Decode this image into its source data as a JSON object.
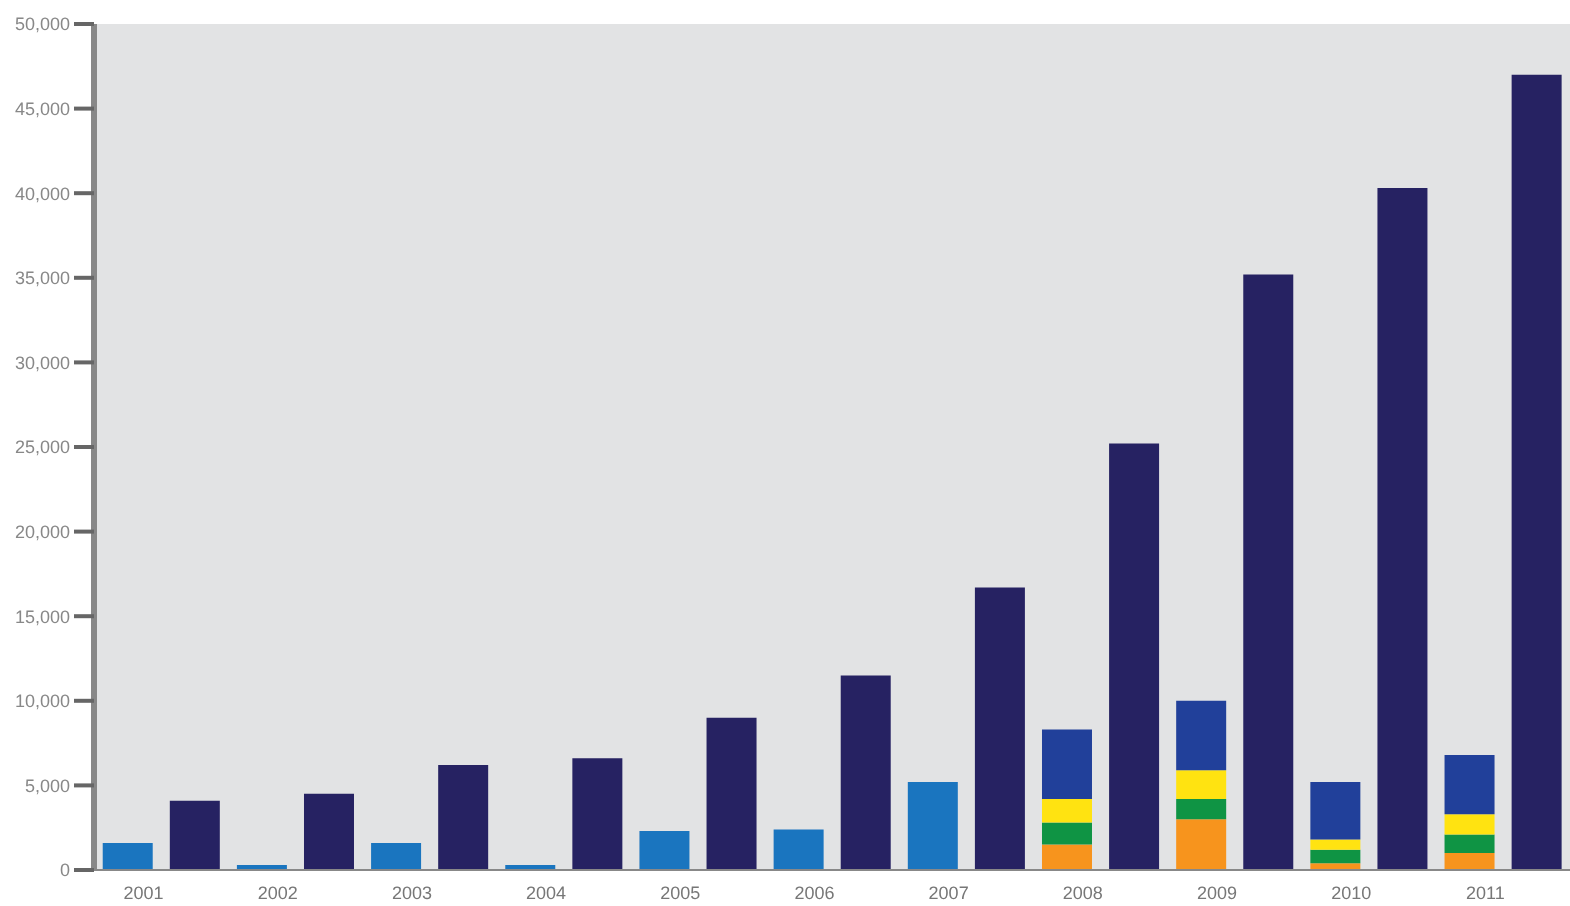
{
  "chart_data": {
    "type": "bar",
    "stacked": true,
    "categories": [
      "2001",
      null,
      "2002",
      null,
      "2003",
      null,
      "2004",
      null,
      "2005",
      null,
      "2006",
      null,
      "2007",
      null,
      "2008",
      null,
      "2009",
      null,
      "2010",
      null,
      "2011",
      null
    ],
    "series": [
      {
        "colors": [
          "#1a75bf",
          null,
          "#1a75bf",
          null,
          "#1a75bf",
          null,
          "#1a75bf",
          null,
          "#1a75bf",
          null,
          "#1a75bf",
          null,
          "#1a75bf",
          null,
          "#f7941d",
          null,
          "#f7941d",
          null,
          "#f7941d",
          null,
          "#f7941d",
          null
        ],
        "values": [
          1600,
          null,
          300,
          null,
          1600,
          null,
          300,
          null,
          2300,
          null,
          2400,
          null,
          5200,
          null,
          1500,
          null,
          3000,
          null,
          400,
          null,
          1000,
          null
        ]
      },
      {
        "color": "#0f9444",
        "values": [
          null,
          null,
          null,
          null,
          null,
          null,
          null,
          null,
          null,
          null,
          null,
          null,
          null,
          null,
          1300,
          null,
          1200,
          null,
          800,
          null,
          1100,
          null
        ]
      },
      {
        "color": "#ffe311",
        "values": [
          null,
          null,
          null,
          null,
          null,
          null,
          null,
          null,
          null,
          null,
          null,
          null,
          null,
          null,
          1400,
          null,
          1700,
          null,
          600,
          null,
          1200,
          null
        ]
      },
      {
        "color": "#21409a",
        "values": [
          null,
          null,
          null,
          null,
          null,
          null,
          null,
          null,
          null,
          null,
          null,
          null,
          null,
          null,
          4100,
          null,
          4100,
          null,
          3400,
          null,
          3500,
          null
        ]
      },
      {
        "color": "#262262",
        "values": [
          null,
          4100,
          null,
          4500,
          null,
          6200,
          null,
          6600,
          null,
          9000,
          null,
          11500,
          null,
          16700,
          null,
          25200,
          null,
          35200,
          null,
          40300,
          null,
          47000
        ]
      }
    ],
    "ylim": [
      0,
      50000
    ],
    "yticks": [
      0,
      {
        "value": 5000,
        "label": "5,000"
      },
      {
        "value": 10000,
        "label": "10,000"
      },
      {
        "value": 15000,
        "label": "15,000"
      },
      {
        "value": 20000,
        "label": "20,000"
      },
      {
        "value": 25000,
        "label": "25,000"
      },
      {
        "value": 30000,
        "label": "30,000"
      },
      {
        "value": 35000,
        "label": "35,000"
      },
      {
        "value": 40000,
        "label": "40,000"
      },
      {
        "value": 45000,
        "label": "45,000"
      },
      {
        "value": 50000,
        "label": "50,000"
      }
    ],
    "grid": false
  }
}
